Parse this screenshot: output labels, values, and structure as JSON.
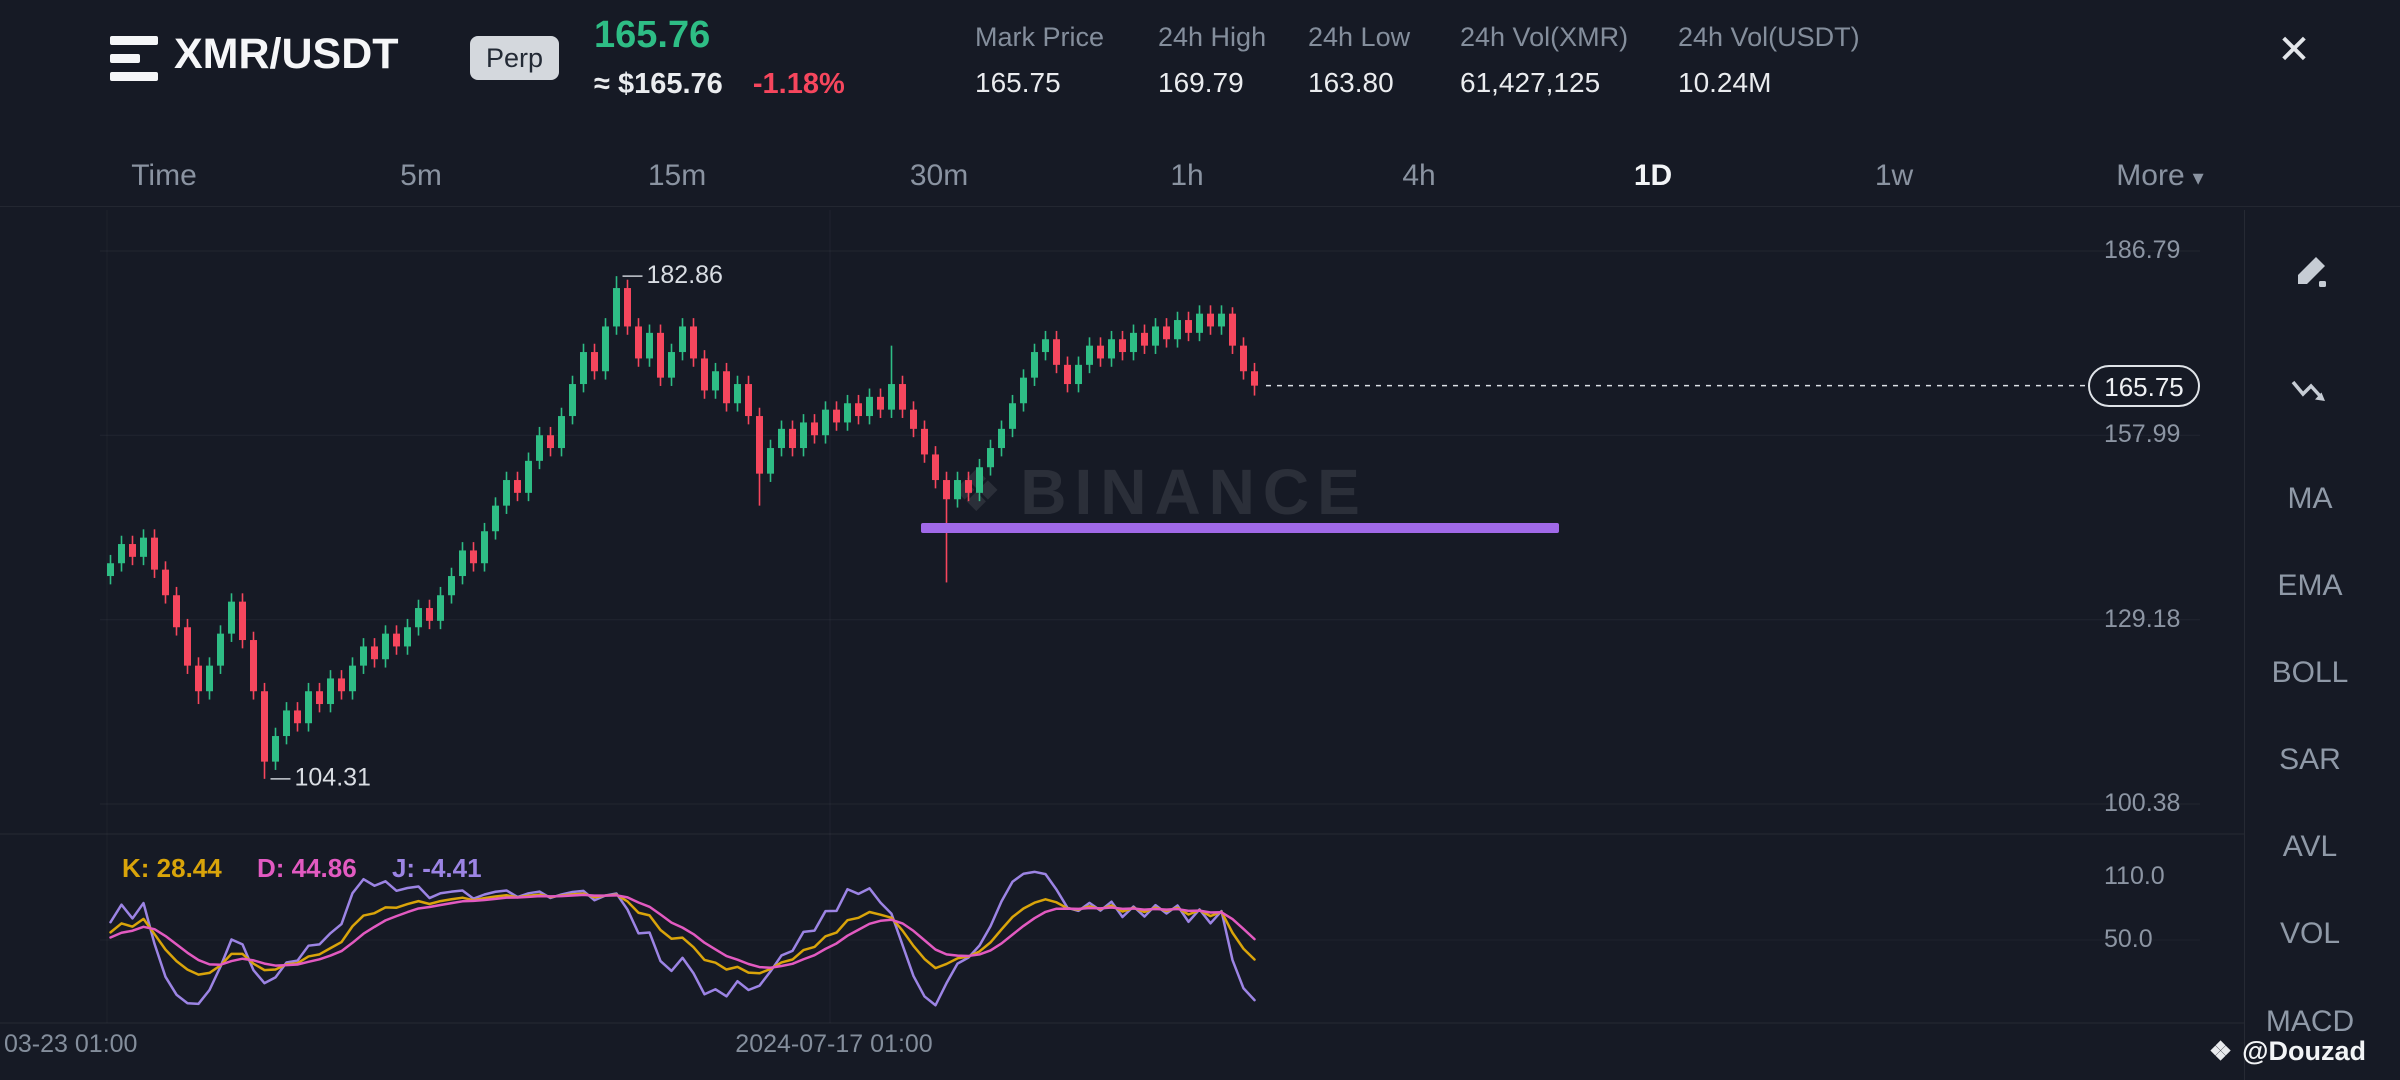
{
  "colors": {
    "background": "#161A25",
    "up": "#2EBD85",
    "down": "#F6465D",
    "drawing_purple": "#A069E8",
    "text_primary": "#EAECEF",
    "text_secondary": "#848E9C"
  },
  "icons": {
    "close": "✕",
    "caret_down": "▾",
    "watermark_diamond": "❖",
    "credit_diamond": "❖"
  },
  "header": {
    "symbol": "XMR/USDT",
    "market_badge": "Perp",
    "last_price": "165.76",
    "approx_price": "≈ $165.76",
    "change_pct": "-1.18%",
    "stats": [
      {
        "label": "Mark Price",
        "value": "165.75"
      },
      {
        "label": "24h High",
        "value": "169.79"
      },
      {
        "label": "24h Low",
        "value": "163.80"
      },
      {
        "label": "24h Vol(XMR)",
        "value": "61,427,125"
      },
      {
        "label": "24h Vol(USDT)",
        "value": "10.24M"
      }
    ]
  },
  "intervals": {
    "items": [
      {
        "label": "Time"
      },
      {
        "label": "5m"
      },
      {
        "label": "15m"
      },
      {
        "label": "30m"
      },
      {
        "label": "1h"
      },
      {
        "label": "4h"
      },
      {
        "label": "1D"
      },
      {
        "label": "1w"
      }
    ],
    "active": "1D",
    "more_label": "More"
  },
  "chart_data": {
    "type": "candlestick",
    "symbol": "XMR/USDT",
    "interval": "1D",
    "y_axis_ticks": [
      "186.79",
      "157.99",
      "129.18",
      "100.38"
    ],
    "x_axis_labels": [
      "03-23 01:00",
      "2024-07-17 01:00"
    ],
    "high_marker": {
      "price": 182.86,
      "label": "182.86"
    },
    "low_marker": {
      "price": 104.31,
      "label": "104.31"
    },
    "last_price_line": {
      "price": 165.75,
      "label": "165.75"
    },
    "drawing_line": {
      "price": 143.5,
      "from_index": 74,
      "to_index": 132,
      "color": "#A069E8",
      "thickness": 10
    },
    "candles": [
      [
        136,
        139.3,
        134.7,
        138
      ],
      [
        138,
        142.3,
        136.7,
        141
      ],
      [
        141,
        142.3,
        137.7,
        139
      ],
      [
        139,
        143.3,
        137.7,
        142
      ],
      [
        142,
        143.3,
        135.7,
        137
      ],
      [
        137,
        138.3,
        131.7,
        133
      ],
      [
        133,
        134.3,
        126.7,
        128
      ],
      [
        128,
        129.3,
        120.7,
        122
      ],
      [
        122,
        123.3,
        116.0,
        118
      ],
      [
        118,
        123.3,
        116.7,
        122
      ],
      [
        122,
        128.3,
        120.7,
        127
      ],
      [
        127,
        133.3,
        125.7,
        132
      ],
      [
        132,
        133.3,
        124.7,
        126
      ],
      [
        126,
        127.3,
        116.7,
        118
      ],
      [
        118,
        119.3,
        104.31,
        107
      ],
      [
        107,
        112.3,
        105.7,
        111
      ],
      [
        111,
        116.3,
        109.7,
        115
      ],
      [
        115,
        116.3,
        111.7,
        113
      ],
      [
        113,
        119.3,
        111.7,
        118
      ],
      [
        118,
        119.3,
        114.7,
        116
      ],
      [
        116,
        121.3,
        114.7,
        120
      ],
      [
        120,
        121.3,
        116.7,
        118
      ],
      [
        118,
        123.3,
        116.7,
        122
      ],
      [
        122,
        126.3,
        120.7,
        125
      ],
      [
        125,
        126.3,
        121.7,
        123
      ],
      [
        123,
        128.3,
        121.7,
        127
      ],
      [
        127,
        128.3,
        123.7,
        125
      ],
      [
        125,
        129.3,
        123.7,
        128
      ],
      [
        128,
        132.3,
        126.7,
        131
      ],
      [
        131,
        132.3,
        127.7,
        129
      ],
      [
        129,
        134.3,
        127.7,
        133
      ],
      [
        133,
        137.3,
        131.7,
        136
      ],
      [
        136,
        141.3,
        134.7,
        140
      ],
      [
        140,
        141.3,
        136.7,
        138
      ],
      [
        138,
        144.3,
        136.7,
        143
      ],
      [
        143,
        148.3,
        141.7,
        147
      ],
      [
        147,
        152.3,
        145.7,
        151
      ],
      [
        151,
        152.3,
        147.7,
        149
      ],
      [
        149,
        155.3,
        147.7,
        154
      ],
      [
        154,
        159.3,
        152.7,
        158
      ],
      [
        158,
        159.3,
        154.7,
        156
      ],
      [
        156,
        162.3,
        154.7,
        161
      ],
      [
        161,
        167.3,
        159.7,
        166
      ],
      [
        166,
        172.3,
        164.7,
        171
      ],
      [
        171,
        172.3,
        166.7,
        168
      ],
      [
        168,
        176.3,
        166.7,
        175
      ],
      [
        175,
        182.86,
        173.7,
        181
      ],
      [
        181,
        182.3,
        173.7,
        175
      ],
      [
        175,
        176.3,
        168.7,
        170
      ],
      [
        170,
        175.3,
        168.7,
        174
      ],
      [
        174,
        175.3,
        165.7,
        167
      ],
      [
        167,
        172.3,
        165.7,
        171
      ],
      [
        171,
        176.3,
        169.7,
        175
      ],
      [
        175,
        176.3,
        168.7,
        170
      ],
      [
        170,
        171.3,
        163.7,
        165
      ],
      [
        165,
        169.3,
        163.7,
        168
      ],
      [
        168,
        169.3,
        161.7,
        163
      ],
      [
        163,
        167.3,
        161.7,
        166
      ],
      [
        166,
        167.3,
        159.7,
        161
      ],
      [
        161,
        162.3,
        147.0,
        152
      ],
      [
        152,
        157.3,
        150.7,
        156
      ],
      [
        156,
        160.3,
        154.7,
        159
      ],
      [
        159,
        160.3,
        154.7,
        156
      ],
      [
        156,
        161.3,
        154.7,
        160
      ],
      [
        160,
        161.3,
        156.7,
        158
      ],
      [
        158,
        163.3,
        156.7,
        162
      ],
      [
        162,
        163.3,
        158.7,
        160
      ],
      [
        160,
        164.3,
        158.7,
        163
      ],
      [
        163,
        164.3,
        159.7,
        161
      ],
      [
        161,
        165.3,
        159.7,
        164
      ],
      [
        164,
        165.3,
        160.7,
        162
      ],
      [
        162,
        172.0,
        160.7,
        166
      ],
      [
        166,
        167.3,
        160.7,
        162
      ],
      [
        162,
        163.3,
        157.7,
        159
      ],
      [
        159,
        160.3,
        153.7,
        155
      ],
      [
        155,
        156.3,
        149.7,
        151
      ],
      [
        151,
        152.3,
        135.0,
        148
      ],
      [
        148,
        152.3,
        146.7,
        151
      ],
      [
        151,
        152.3,
        147.7,
        149
      ],
      [
        149,
        154.3,
        147.7,
        153
      ],
      [
        153,
        157.3,
        151.7,
        156
      ],
      [
        156,
        160.3,
        154.7,
        159
      ],
      [
        159,
        164.3,
        157.7,
        163
      ],
      [
        163,
        168.3,
        161.7,
        167
      ],
      [
        167,
        172.3,
        165.7,
        171
      ],
      [
        171,
        174.3,
        169.7,
        173
      ],
      [
        173,
        174.3,
        167.7,
        169
      ],
      [
        169,
        170.3,
        164.7,
        166
      ],
      [
        166,
        170.3,
        164.7,
        169
      ],
      [
        169,
        173.3,
        167.7,
        172
      ],
      [
        172,
        173.3,
        168.7,
        170
      ],
      [
        170,
        174.3,
        168.7,
        173
      ],
      [
        173,
        174.3,
        169.7,
        171
      ],
      [
        171,
        175.3,
        169.7,
        174
      ],
      [
        174,
        175.3,
        170.7,
        172
      ],
      [
        172,
        176.3,
        170.7,
        175
      ],
      [
        175,
        176.3,
        171.7,
        173
      ],
      [
        173,
        177.3,
        171.7,
        176
      ],
      [
        176,
        177.3,
        172.7,
        174
      ],
      [
        174,
        178.3,
        172.7,
        177
      ],
      [
        177,
        178.3,
        173.7,
        175
      ],
      [
        175,
        178.3,
        173.7,
        177
      ],
      [
        177,
        178.0,
        170.7,
        172
      ],
      [
        172,
        173.3,
        166.7,
        168
      ],
      [
        168,
        169.3,
        164.2,
        165.75
      ]
    ],
    "kdj": {
      "k_label": "K: 28.44",
      "d_label": "D: 44.86",
      "j_label": "J: -4.41",
      "k_value": 28.44,
      "d_value": 44.86,
      "j_value": -4.41,
      "k_color": "#D9A40A",
      "d_color": "#E25AC1",
      "j_color": "#9C84E4",
      "axis_ticks": [
        "110.0",
        "50.0"
      ],
      "params": [
        9,
        3,
        3
      ]
    }
  },
  "side_toolbar": {
    "indicators": [
      "MA",
      "EMA",
      "BOLL",
      "SAR",
      "AVL",
      "VOL",
      "MACD"
    ]
  },
  "watermark": "BINANCE",
  "credit": "@Douzad"
}
